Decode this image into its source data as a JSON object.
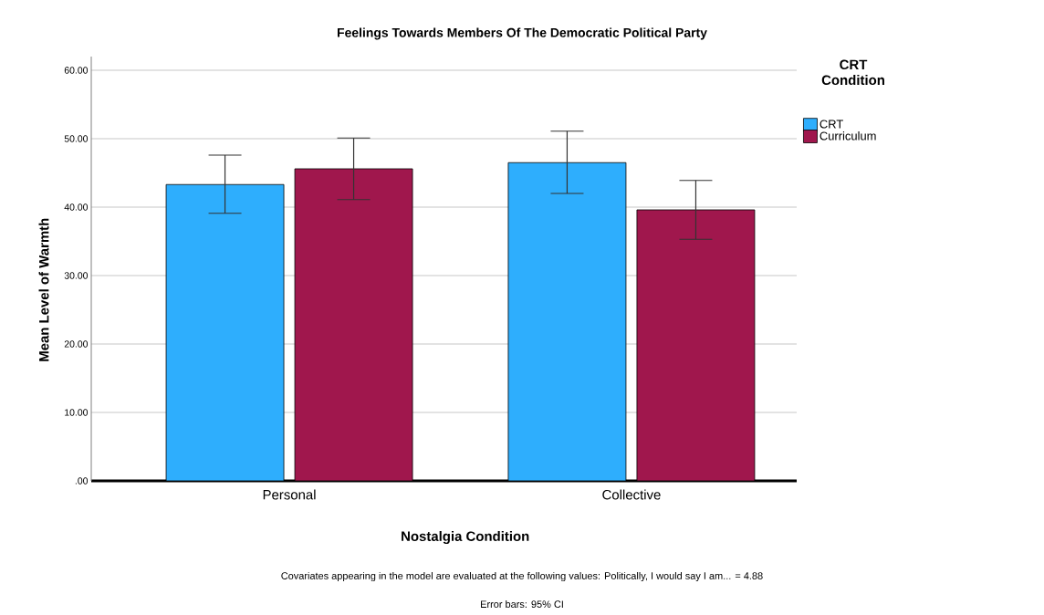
{
  "chart_data": {
    "type": "bar",
    "title": "Feelings Towards Members Of The Democratic Political Party",
    "xlabel": "Nostalgia Condition",
    "ylabel": "Mean Level of Warmth",
    "legend_title": "CRT Condition",
    "categories": [
      "Personal",
      "Collective"
    ],
    "series": [
      {
        "name": "CRT",
        "color": "#2eaefd",
        "values": [
          43.3,
          46.5
        ],
        "errors": [
          [
            39.1,
            47.6
          ],
          [
            42.0,
            51.1
          ]
        ]
      },
      {
        "name": "Curriculum",
        "color": "#a0174d",
        "values": [
          45.6,
          39.6
        ],
        "errors": [
          [
            41.1,
            50.1
          ],
          [
            35.3,
            43.9
          ]
        ]
      }
    ],
    "ylim": [
      0,
      62
    ],
    "yticks": [
      {
        "value": 0,
        "label": ".00"
      },
      {
        "value": 10,
        "label": "10.00"
      },
      {
        "value": 20,
        "label": "20.00"
      },
      {
        "value": 30,
        "label": "30.00"
      },
      {
        "value": 40,
        "label": "40.00"
      },
      {
        "value": 50,
        "label": "50.00"
      },
      {
        "value": 60,
        "label": "60.00"
      }
    ],
    "grid": "y",
    "legend": "top right",
    "annotations": [
      "Covariates appearing in the model are evaluated at the following values: Politically, I would say I am... = 4.88",
      "Error bars: 95% CI"
    ]
  }
}
